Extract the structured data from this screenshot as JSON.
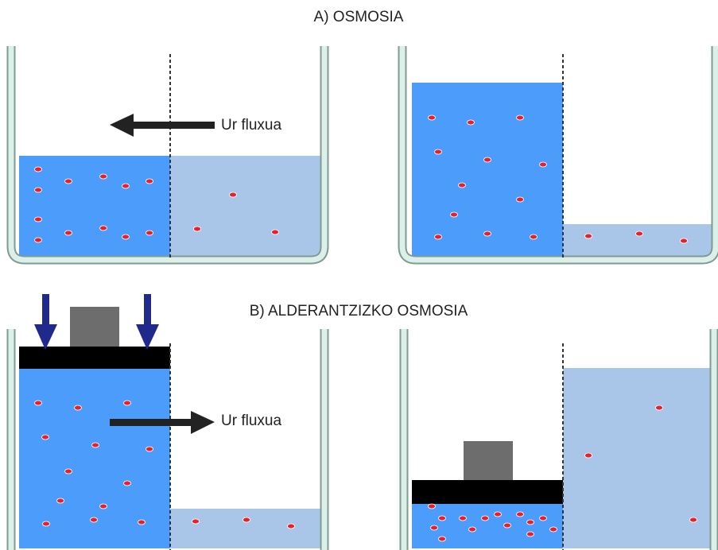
{
  "sections": [
    {
      "title": "A) OSMOSIA",
      "flow_label": "Ur fluxua"
    },
    {
      "title": "B) ALDERANTZIZKO OSMOSIA",
      "flow_label": "Ur fluxua"
    }
  ]
}
